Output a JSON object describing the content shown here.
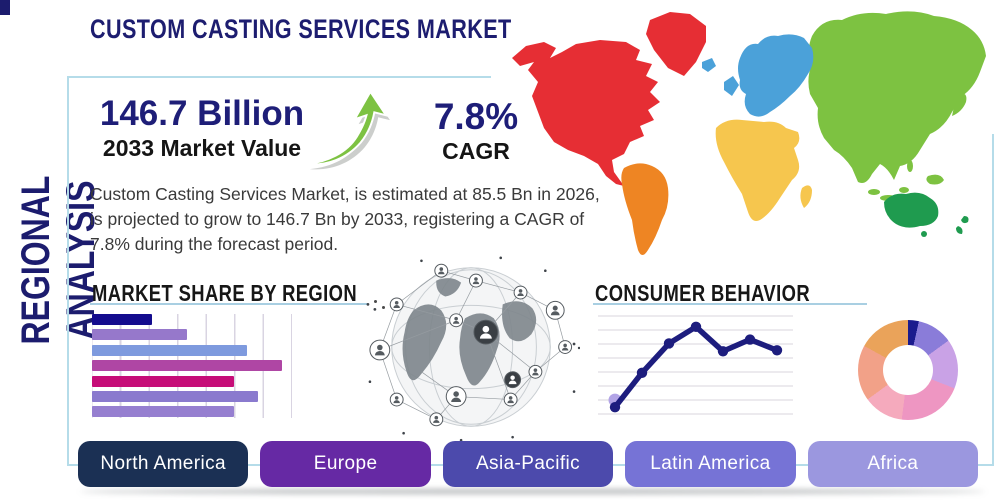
{
  "sidebar": {
    "title": "REGIONAL ANALYSIS"
  },
  "header": {
    "title": "CUSTOM CASTING SERVICES MARKET"
  },
  "stats": {
    "market_value": "146.7 Billion",
    "market_value_label": "2033 Market Value",
    "cagr_value": "7.8%",
    "cagr_label": "CAGR"
  },
  "description": "Custom Casting Services Market, is estimated at 85.5 Bn in 2026, is projected to grow to 146.7 Bn by 2033, registering a CAGR of 7.8% during the forecast period.",
  "sections": {
    "market_share_title": "MARKET SHARE BY REGION",
    "consumer_behavior_title": "CONSUMER BEHAVIOR"
  },
  "region_buttons": [
    {
      "label": "North America",
      "color": "#1b3054"
    },
    {
      "label": "Europe",
      "color": "#6629a4"
    },
    {
      "label": "Asia-Pacific",
      "color": "#4c4aac"
    },
    {
      "label": "Latin America",
      "color": "#7673d6"
    },
    {
      "label": "Africa",
      "color": "#9b97df"
    }
  ],
  "accent": {
    "panel_border": "#b5dce9",
    "heading_underline": "#a9cfe2",
    "growth_arrow": "#7dc242",
    "title_navy": "#1d1d70"
  },
  "icons": {
    "growth_arrow": "curved-up-right-arrow",
    "globe": "connected-globe-network"
  },
  "map": {
    "colors": {
      "north_america": "#e62e34",
      "greenland": "#e62e34",
      "south_america": "#ee8523",
      "europe": "#4ba1d9",
      "africa": "#f6c64e",
      "asia": "#7dc241",
      "australia": "#1f9b4f"
    }
  },
  "chart_data": [
    {
      "type": "bar",
      "title": "MARKET SHARE BY REGION",
      "orientation": "horizontal",
      "note": "no axis labels shown; values are % of chart width",
      "categories": [
        "",
        "",
        "",
        "",
        "",
        "",
        ""
      ],
      "values": [
        30,
        47.5,
        77.5,
        95,
        71,
        83,
        71
      ],
      "colors": [
        "#140c8e",
        "#9678cb",
        "#7e9ade",
        "#af46a4",
        "#c60d78",
        "#8a7ace",
        "#967fd0"
      ],
      "xlim": [
        0,
        100
      ],
      "grid": true
    },
    {
      "type": "line",
      "title": "CONSUMER BEHAVIOR",
      "note": "no axis labels shown; y is relative 0-100",
      "x": [
        1,
        2,
        3,
        4,
        5,
        6,
        7
      ],
      "y": [
        7,
        42,
        72,
        89,
        64,
        76,
        65
      ],
      "ylim": [
        0,
        100
      ],
      "line_color": "#1d1d7e",
      "first_point_halo_color": "#b2a4e6",
      "grid": "horizontal",
      "gridline_count": 8
    },
    {
      "type": "pie",
      "donut": true,
      "title": "",
      "note": "no labels shown; sizes estimated from angles, clockwise from top",
      "slices": [
        {
          "value": 3.5,
          "color": "#1b1b8e"
        },
        {
          "value": 11.5,
          "color": "#8a7cd9"
        },
        {
          "value": 16,
          "color": "#c9a2e6"
        },
        {
          "value": 21,
          "color": "#ee96c2"
        },
        {
          "value": 13,
          "color": "#f5aabd"
        },
        {
          "value": 18,
          "color": "#f2a188"
        },
        {
          "value": 17,
          "color": "#eaa35a"
        }
      ]
    }
  ]
}
